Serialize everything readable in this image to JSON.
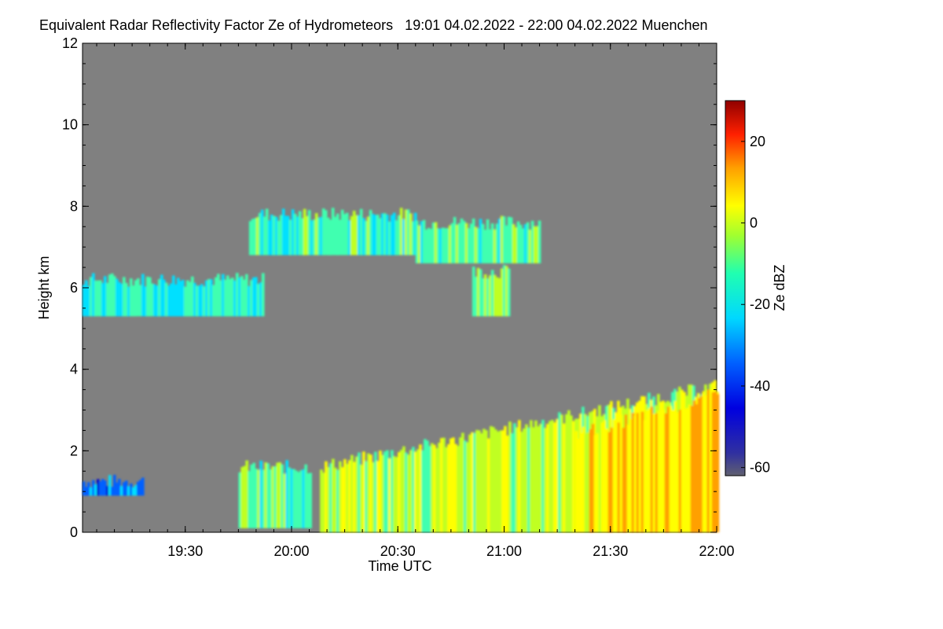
{
  "title": "Equivalent Radar Reflectivity Factor Ze of Hydrometeors   19:01 04.02.2022 - 22:00 04.02.2022 Muenchen",
  "chart_data": {
    "type": "heatmap",
    "xlabel": "Time UTC",
    "ylabel": "Height km",
    "x_range": [
      "19:01",
      "22:00"
    ],
    "x_ticks": [
      "19:30",
      "20:00",
      "20:30",
      "21:00",
      "21:30",
      "22:00"
    ],
    "x_tick_values_min": [
      30,
      60,
      90,
      120,
      150,
      180
    ],
    "x_min": 1,
    "x_max": 180,
    "ylim": [
      0,
      12
    ],
    "y_ticks": [
      0,
      2,
      4,
      6,
      8,
      10,
      12
    ],
    "colorbar": {
      "label": "Ze dBZ",
      "range": [
        -62,
        30
      ],
      "ticks": [
        20,
        0,
        -20,
        -40,
        -60
      ],
      "colormap": [
        "#606060",
        "#0000cc",
        "#0060ff",
        "#00e0ff",
        "#40ffb0",
        "#c0ff20",
        "#ffff00",
        "#ffa000",
        "#ff2000",
        "#a00000"
      ]
    },
    "background_color": "#808080",
    "regions": [
      {
        "name": "low-cloud-left",
        "t": [
          1,
          18
        ],
        "h": [
          0.9,
          1.25
        ],
        "ze": -40
      },
      {
        "name": "mid-cloud-left",
        "t": [
          1,
          52
        ],
        "h": [
          5.3,
          6.2
        ],
        "ze": -25
      },
      {
        "name": "high-cloud-band-1",
        "t": [
          48,
          95
        ],
        "h": [
          6.8,
          7.8
        ],
        "ze": -22
      },
      {
        "name": "high-cloud-band-2",
        "t": [
          95,
          130
        ],
        "h": [
          6.6,
          7.6
        ],
        "ze": -20
      },
      {
        "name": "fallstreak-20h50",
        "t": [
          111,
          121
        ],
        "h": [
          5.3,
          6.4
        ],
        "ze": -15
      },
      {
        "name": "convective-cells-19h40",
        "t": [
          45,
          65
        ],
        "h": [
          0.1,
          1.6
        ],
        "ze": -20
      },
      {
        "name": "rising-layer",
        "t": [
          68,
          180
        ],
        "h": [
          0.0,
          3.6
        ],
        "ze": -10
      },
      {
        "name": "precip-core",
        "t": [
          140,
          180
        ],
        "h": [
          0.0,
          3.3
        ],
        "ze": 0
      }
    ]
  }
}
